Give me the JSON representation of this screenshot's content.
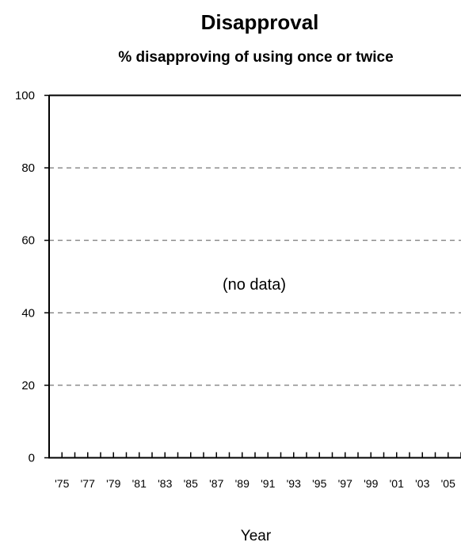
{
  "chart_data": {
    "type": "line",
    "title": "Disapproval",
    "subtitle": "% disapproving of using once or twice",
    "xlabel": "Year",
    "ylabel": "",
    "ylim": [
      0,
      100
    ],
    "yticks": [
      "0",
      "20",
      "40",
      "60",
      "80",
      "100"
    ],
    "ytick_values": [
      0,
      20,
      40,
      60,
      80,
      100
    ],
    "x_tick_labels": [
      "'75",
      "'77",
      "'79",
      "'81",
      "'83",
      "'85",
      "'87",
      "'89",
      "'91",
      "'93",
      "'95",
      "'97",
      "'99",
      "'01",
      "'03",
      "'05"
    ],
    "x_minor_tick_count": 32,
    "gridlines": "dashed, horizontal",
    "annotation": "(no data)",
    "series": []
  }
}
